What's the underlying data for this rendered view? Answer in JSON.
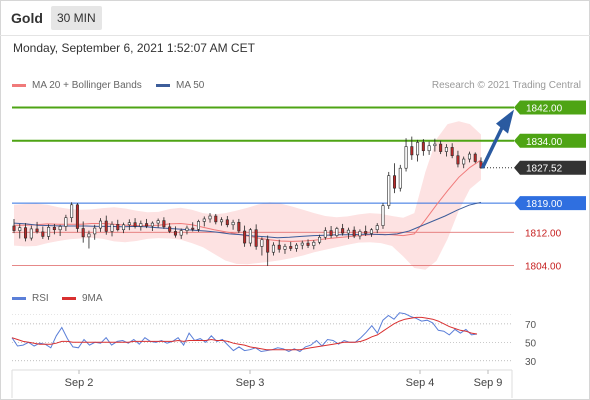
{
  "header": {
    "instrument": "Gold",
    "timeframe": "30 MIN",
    "timestamp": "Monday, September 6, 2021 1:52:07 AM CET"
  },
  "legend": {
    "ma20_label": "MA 20 + Bollinger Bands",
    "ma50_label": "MA 50",
    "credit": "Research © 2021 Trading Central"
  },
  "rsi_legend": {
    "rsi_label": "RSI",
    "ma9_label": "9MA"
  },
  "colors": {
    "candle_up": "#ffffff",
    "candle_down": "#b92b2b",
    "candle_body_border": "#2a2a2a",
    "bollinger_fill": "#fde2e2",
    "ma20": "#f07a7a",
    "ma50": "#3d5d9a",
    "resistance": "#4ea414",
    "current": "#333333",
    "pivot": "#2f6fe0",
    "support": "#de6060",
    "arrow": "#2a5aa0",
    "rsi": "#5b7fd8",
    "rsi_ma": "#d93030"
  },
  "chart_data": [
    {
      "type": "candlestick",
      "title": "Gold 30 MIN",
      "x_labels": [
        "Sep 2",
        "Sep 3",
        "Sep 4",
        "Sep 9"
      ],
      "ylim": [
        1801,
        1845
      ],
      "price_levels": [
        {
          "value": 1842.0,
          "label": "1842.00",
          "kind": "resistance"
        },
        {
          "value": 1834.0,
          "label": "1834.00",
          "kind": "resistance"
        },
        {
          "value": 1827.52,
          "label": "1827.52",
          "kind": "last"
        },
        {
          "value": 1819.0,
          "label": "1819.00",
          "kind": "pivot"
        },
        {
          "value": 1812.0,
          "label": "1812.00",
          "kind": "support"
        },
        {
          "value": 1804.0,
          "label": "1804.00",
          "kind": "support"
        }
      ],
      "ohlc": [
        [
          1813.5,
          1815.2,
          1811.8,
          1812.4
        ],
        [
          1812.4,
          1814.0,
          1810.5,
          1813.1
        ],
        [
          1813.1,
          1814.2,
          1809.8,
          1810.6
        ],
        [
          1810.6,
          1813.6,
          1810.0,
          1812.8
        ],
        [
          1812.8,
          1814.5,
          1811.7,
          1812.1
        ],
        [
          1812.1,
          1813.4,
          1810.4,
          1811.0
        ],
        [
          1811.0,
          1813.9,
          1810.2,
          1813.2
        ],
        [
          1813.2,
          1814.0,
          1811.5,
          1812.6
        ],
        [
          1812.6,
          1813.8,
          1811.1,
          1813.4
        ],
        [
          1813.4,
          1816.2,
          1812.3,
          1815.5
        ],
        [
          1815.5,
          1819.2,
          1814.4,
          1818.6
        ],
        [
          1818.6,
          1819.0,
          1812.0,
          1812.9
        ],
        [
          1812.9,
          1814.6,
          1809.5,
          1810.9
        ],
        [
          1810.9,
          1812.4,
          1808.1,
          1811.6
        ],
        [
          1811.6,
          1813.8,
          1810.2,
          1813.0
        ],
        [
          1813.0,
          1815.4,
          1812.1,
          1814.7
        ],
        [
          1814.7,
          1816.0,
          1811.4,
          1812.2
        ],
        [
          1812.2,
          1814.6,
          1811.0,
          1813.9
        ],
        [
          1813.9,
          1815.0,
          1812.2,
          1812.6
        ],
        [
          1812.6,
          1814.3,
          1811.8,
          1813.8
        ],
        [
          1813.8,
          1815.1,
          1812.5,
          1814.3
        ],
        [
          1814.3,
          1815.4,
          1812.9,
          1813.4
        ],
        [
          1813.4,
          1814.8,
          1812.4,
          1814.1
        ],
        [
          1814.1,
          1815.2,
          1813.0,
          1813.5
        ],
        [
          1813.5,
          1814.6,
          1812.3,
          1814.2
        ],
        [
          1814.2,
          1815.3,
          1813.1,
          1814.8
        ],
        [
          1814.8,
          1815.6,
          1812.8,
          1813.3
        ],
        [
          1813.3,
          1814.2,
          1811.8,
          1812.2
        ],
        [
          1812.2,
          1813.4,
          1810.7,
          1811.3
        ],
        [
          1811.3,
          1812.9,
          1810.4,
          1812.4
        ],
        [
          1812.4,
          1813.6,
          1811.5,
          1813.0
        ],
        [
          1813.0,
          1814.4,
          1812.2,
          1812.7
        ],
        [
          1812.7,
          1815.0,
          1812.1,
          1814.6
        ],
        [
          1814.6,
          1815.8,
          1813.4,
          1815.2
        ],
        [
          1815.2,
          1816.6,
          1814.3,
          1815.9
        ],
        [
          1815.9,
          1816.4,
          1813.9,
          1814.5
        ],
        [
          1814.5,
          1815.6,
          1813.6,
          1815.0
        ],
        [
          1815.0,
          1815.9,
          1813.2,
          1813.8
        ],
        [
          1813.8,
          1815.0,
          1812.6,
          1814.4
        ],
        [
          1814.4,
          1815.2,
          1811.8,
          1812.3
        ],
        [
          1812.3,
          1813.6,
          1808.5,
          1809.4
        ],
        [
          1809.4,
          1813.0,
          1808.6,
          1812.6
        ],
        [
          1812.6,
          1813.9,
          1807.8,
          1808.6
        ],
        [
          1808.6,
          1810.8,
          1806.4,
          1810.2
        ],
        [
          1810.2,
          1811.2,
          1803.9,
          1807.2
        ],
        [
          1807.2,
          1809.6,
          1806.4,
          1808.9
        ],
        [
          1808.9,
          1810.2,
          1807.1,
          1807.9
        ],
        [
          1807.9,
          1809.2,
          1806.8,
          1808.6
        ],
        [
          1808.6,
          1809.7,
          1807.5,
          1808.1
        ],
        [
          1808.1,
          1809.4,
          1807.3,
          1808.9
        ],
        [
          1808.9,
          1810.0,
          1807.9,
          1809.4
        ],
        [
          1809.4,
          1810.3,
          1808.2,
          1808.8
        ],
        [
          1808.8,
          1810.1,
          1807.9,
          1809.6
        ],
        [
          1809.6,
          1811.4,
          1809.1,
          1810.8
        ],
        [
          1810.8,
          1813.2,
          1810.2,
          1812.4
        ],
        [
          1812.4,
          1813.5,
          1810.6,
          1811.2
        ],
        [
          1811.2,
          1813.3,
          1810.8,
          1812.9
        ],
        [
          1812.9,
          1814.0,
          1811.2,
          1811.8
        ],
        [
          1811.8,
          1813.1,
          1810.4,
          1812.5
        ],
        [
          1812.5,
          1813.4,
          1810.6,
          1811.1
        ],
        [
          1811.1,
          1812.7,
          1810.3,
          1812.2
        ],
        [
          1812.2,
          1813.6,
          1811.1,
          1811.7
        ],
        [
          1811.7,
          1813.0,
          1810.9,
          1812.6
        ],
        [
          1812.6,
          1814.2,
          1811.8,
          1813.6
        ],
        [
          1813.6,
          1819.0,
          1812.8,
          1818.4
        ],
        [
          1818.4,
          1826.5,
          1817.6,
          1825.6
        ],
        [
          1825.6,
          1828.6,
          1821.4,
          1822.6
        ],
        [
          1822.6,
          1828.2,
          1821.8,
          1827.4
        ],
        [
          1827.4,
          1834.6,
          1826.6,
          1832.6
        ],
        [
          1832.6,
          1835.0,
          1829.4,
          1830.6
        ],
        [
          1830.6,
          1834.2,
          1829.0,
          1833.6
        ],
        [
          1833.6,
          1834.4,
          1830.4,
          1831.6
        ],
        [
          1831.6,
          1833.8,
          1830.6,
          1832.8
        ],
        [
          1832.8,
          1834.5,
          1831.4,
          1833.2
        ],
        [
          1833.2,
          1834.0,
          1830.8,
          1831.4
        ],
        [
          1831.4,
          1833.2,
          1830.2,
          1832.4
        ],
        [
          1832.4,
          1833.4,
          1829.8,
          1830.4
        ],
        [
          1830.4,
          1831.6,
          1827.6,
          1828.4
        ],
        [
          1828.4,
          1830.2,
          1827.4,
          1829.6
        ],
        [
          1829.6,
          1831.4,
          1828.8,
          1830.8
        ],
        [
          1830.8,
          1831.2,
          1828.6,
          1829.0
        ],
        [
          1829.0,
          1830.0,
          1827.2,
          1827.5
        ]
      ],
      "bollinger": {
        "upper": [
          1818.6,
          1818.8,
          1818.9,
          1818.6,
          1818.0,
          1817.6,
          1817.4,
          1817.5,
          1817.8,
          1818.0,
          1817.7,
          1817.2,
          1816.8,
          1816.9,
          1817.6,
          1817.9,
          1817.4,
          1816.6,
          1816.3,
          1816.6,
          1817.2,
          1817.9,
          1818.7,
          1819.2,
          1818.9,
          1818.2,
          1817.4,
          1816.6,
          1815.9,
          1815.6,
          1815.8,
          1816.3,
          1816.6,
          1816.4,
          1815.9,
          1815.5,
          1816.6,
          1826.5,
          1834.4,
          1838.0,
          1838.7,
          1838.0,
          1835.5
        ],
        "lower": [
          1808.8,
          1808.6,
          1808.7,
          1809.4,
          1809.9,
          1810.3,
          1810.5,
          1810.7,
          1810.4,
          1809.8,
          1809.6,
          1809.9,
          1810.4,
          1810.6,
          1810.5,
          1810.2,
          1809.4,
          1808.4,
          1806.8,
          1805.2,
          1804.4,
          1804.3,
          1804.6,
          1804.9,
          1805.3,
          1805.8,
          1806.4,
          1807.2,
          1807.8,
          1808.4,
          1809.0,
          1809.5,
          1809.6,
          1809.4,
          1808.7,
          1806.2,
          1803.4,
          1803.0,
          1805.1,
          1810.4,
          1817.2,
          1822.4,
          1824.6
        ]
      },
      "ma20": [
        1813.7,
        1813.7,
        1813.8,
        1814.0,
        1813.9,
        1813.9,
        1813.9,
        1814.1,
        1814.1,
        1813.9,
        1813.7,
        1813.6,
        1813.6,
        1813.7,
        1814.0,
        1814.1,
        1813.8,
        1813.2,
        1812.6,
        1812.1,
        1811.6,
        1811.1,
        1810.6,
        1810.2,
        1809.9,
        1809.8,
        1809.9,
        1810.1,
        1810.4,
        1810.7,
        1810.9,
        1811.2,
        1811.4,
        1811.5,
        1811.4,
        1811.2,
        1811.6,
        1815.0,
        1818.6,
        1822.0,
        1825.2,
        1827.6,
        1829.4
      ],
      "ma50": [
        1814.2,
        1814.0,
        1813.7,
        1813.6,
        1813.5,
        1813.5,
        1813.5,
        1813.4,
        1813.4,
        1813.3,
        1813.4,
        1813.3,
        1813.1,
        1812.9,
        1812.7,
        1812.5,
        1812.3,
        1812.0,
        1811.6,
        1811.4,
        1811.1,
        1810.9,
        1810.7,
        1810.8,
        1811.0,
        1811.2,
        1811.3,
        1811.4,
        1811.4,
        1811.5,
        1811.5,
        1811.4,
        1811.6,
        1812.3,
        1813.5,
        1814.7,
        1815.9,
        1817.3,
        1818.5,
        1819.2
      ],
      "projection": {
        "from": 1827.5,
        "to": 1841.0
      }
    },
    {
      "type": "line",
      "title": "RSI",
      "x_labels": [
        "Sep 2",
        "Sep 3",
        "Sep 4",
        "Sep 9"
      ],
      "ylim": [
        20,
        85
      ],
      "reference_levels": [
        70,
        50,
        30
      ],
      "ticks": [
        "70",
        "50",
        "30"
      ],
      "series": [
        {
          "name": "RSI",
          "values": [
            55,
            46,
            47,
            50,
            46,
            49,
            48,
            44,
            57,
            66,
            54,
            45,
            44,
            53,
            47,
            50,
            49,
            55,
            47,
            51,
            52,
            49,
            53,
            48,
            55,
            51,
            50,
            52,
            49,
            51,
            55,
            47,
            60,
            52,
            54,
            50,
            57,
            51,
            53,
            47,
            41,
            45,
            41,
            42,
            44,
            40,
            41,
            42,
            44,
            43,
            40,
            43,
            40,
            45,
            47,
            52,
            46,
            53,
            52,
            48,
            52,
            50,
            50,
            55,
            61,
            68,
            60,
            74,
            79,
            75,
            82,
            81,
            78,
            76,
            73,
            74,
            71,
            63,
            62,
            58,
            64,
            60,
            64,
            58,
            59
          ]
        },
        {
          "name": "9MA",
          "values": [
            55,
            53,
            51,
            50,
            49,
            48,
            48,
            48,
            49,
            51,
            51,
            50,
            50,
            50,
            50,
            50,
            50,
            50,
            50,
            50,
            50,
            50,
            51,
            51,
            51,
            51,
            51,
            51,
            51,
            51,
            52,
            51,
            52,
            52,
            52,
            52,
            53,
            52,
            52,
            51,
            49,
            48,
            47,
            45,
            44,
            43,
            42,
            42,
            42,
            42,
            42,
            42,
            42,
            43,
            44,
            45,
            46,
            47,
            48,
            49,
            50,
            50,
            50,
            51,
            53,
            56,
            58,
            62,
            66,
            70,
            73,
            75,
            76,
            77,
            77,
            76,
            75,
            73,
            70,
            67,
            65,
            63,
            62,
            60,
            59
          ]
        }
      ]
    }
  ]
}
